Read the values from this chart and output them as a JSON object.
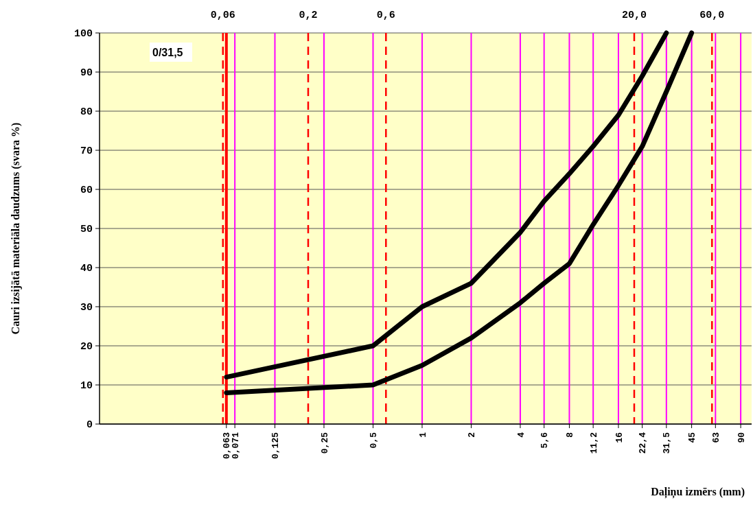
{
  "chart_data": {
    "type": "line",
    "xlabel": "Daļiņu izmērs (mm)",
    "ylabel": "Cauri izsijātā materiāla daudzums (svara %)",
    "log": "x",
    "xlim": [
      0.0105,
      105
    ],
    "ylim": [
      0,
      100
    ],
    "xticks": [
      {
        "value": 0.063,
        "label": "0,063"
      },
      {
        "value": 0.071,
        "label": "0,071"
      },
      {
        "value": 0.125,
        "label": "0,125"
      },
      {
        "value": 0.25,
        "label": "0,25"
      },
      {
        "value": 0.5,
        "label": "0,5"
      },
      1,
      2,
      4,
      {
        "value": 5.6,
        "label": "5,6"
      },
      8,
      {
        "value": 11.2,
        "label": "11,2"
      },
      16,
      {
        "value": 22.4,
        "label": "22,4"
      },
      {
        "value": 31.5,
        "label": "31,5"
      },
      45,
      63,
      90
    ],
    "yticks": [
      0,
      10,
      20,
      30,
      40,
      50,
      60,
      70,
      80,
      90,
      100
    ],
    "grid": true,
    "line_style": "solid",
    "series": [
      {
        "color": "#000000",
        "x": [
          0.063,
          0.5,
          1,
          2,
          4,
          5.6,
          8,
          11.2,
          16,
          22.4,
          31.5
        ],
        "values": [
          12,
          20,
          30,
          36,
          49,
          57,
          64,
          71,
          79,
          89,
          100
        ]
      },
      {
        "color": "#000000",
        "x": [
          0.063,
          0.5,
          1,
          2,
          4,
          5.6,
          8,
          11.2,
          16,
          22.4,
          31.5,
          45
        ],
        "values": [
          8,
          10,
          15,
          22,
          31,
          36,
          41,
          51,
          61,
          71,
          85,
          100
        ]
      }
    ],
    "ref_lines": [
      {
        "axis": "x",
        "value": 0.063,
        "color": "#ff0000",
        "line_style": "solid"
      },
      {
        "axis": "x",
        "value": 0.06,
        "label": "0,06",
        "color": "#ff0000",
        "line_style": "dashed"
      },
      {
        "axis": "x",
        "value": 0.2,
        "label": "0,2",
        "color": "#ff0000",
        "line_style": "dashed"
      },
      {
        "axis": "x",
        "value": 0.6,
        "label": "0,6",
        "color": "#ff0000",
        "line_style": "dashed"
      },
      {
        "axis": "x",
        "value": 20,
        "label": "20,0",
        "color": "#ff0000",
        "line_style": "dashed"
      },
      {
        "axis": "x",
        "value": 60,
        "label": "60,0",
        "color": "#ff0000",
        "line_style": "dashed"
      }
    ],
    "annotations": [
      "0/31,5"
    ]
  }
}
